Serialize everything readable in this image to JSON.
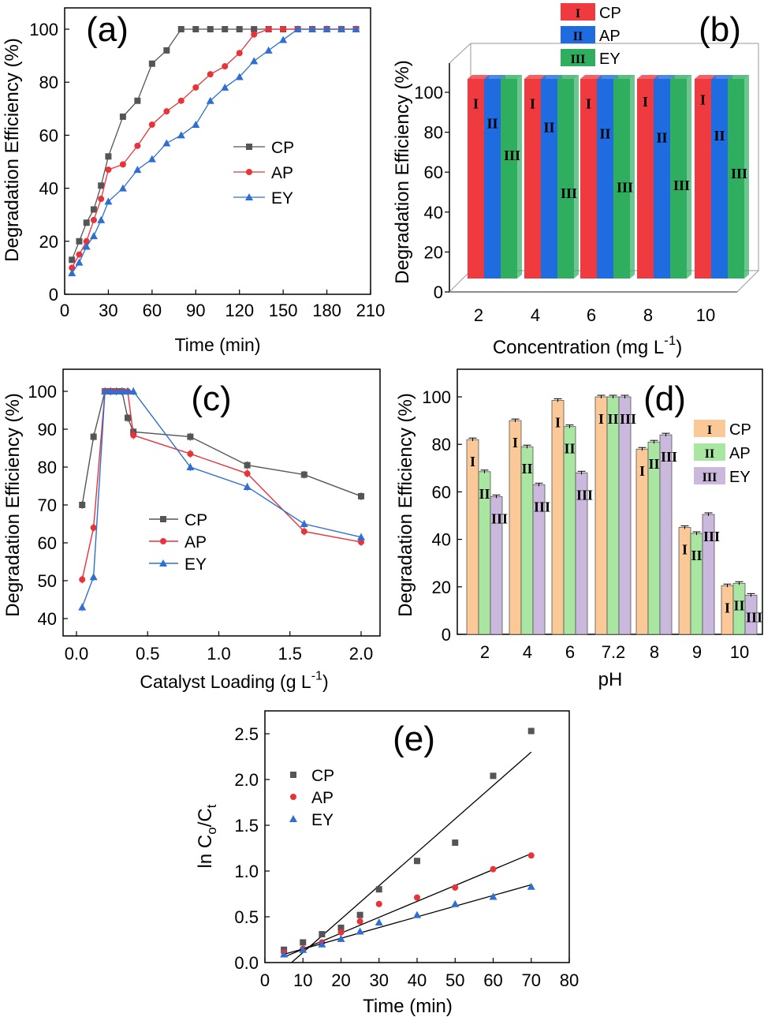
{
  "chart_data": [
    {
      "id": "a",
      "type": "line",
      "panel_label": "(a)",
      "xlabel": "Time (min)",
      "ylabel": "Degradation Efficiency (%)",
      "xlim": [
        0,
        210
      ],
      "ylim": [
        0,
        100
      ],
      "xticks": [
        "0",
        "30",
        "60",
        "90",
        "120",
        "150",
        "180",
        "210"
      ],
      "yticks": [
        "0",
        "20",
        "40",
        "60",
        "80",
        "100"
      ],
      "legend_position": "center-right",
      "series": [
        {
          "name": "CP",
          "color": "#555555",
          "marker": "square",
          "x": [
            5,
            10,
            15,
            20,
            25,
            30,
            40,
            50,
            60,
            70,
            80,
            90,
            100,
            110,
            120,
            130,
            140,
            150,
            160,
            170,
            180,
            190,
            200
          ],
          "y": [
            13,
            20,
            27,
            32,
            41,
            52,
            67,
            73,
            87,
            92,
            100,
            100,
            100,
            100,
            100,
            100,
            100,
            100,
            100,
            100,
            100,
            100,
            100
          ]
        },
        {
          "name": "AP",
          "color": "#e8333b",
          "marker": "circle",
          "x": [
            5,
            10,
            15,
            20,
            25,
            30,
            40,
            50,
            60,
            70,
            80,
            90,
            100,
            110,
            120,
            130,
            140,
            150,
            160,
            170,
            180,
            190,
            200
          ],
          "y": [
            10,
            15,
            20,
            28,
            36,
            47,
            49,
            56,
            64,
            69,
            73,
            78,
            83,
            86,
            91,
            98,
            100,
            100,
            100,
            100,
            100,
            100,
            100
          ]
        },
        {
          "name": "EY",
          "color": "#2f6fd1",
          "marker": "triangle",
          "x": [
            5,
            10,
            15,
            20,
            25,
            30,
            40,
            50,
            60,
            70,
            80,
            90,
            100,
            110,
            120,
            130,
            140,
            150,
            160,
            170,
            180,
            190,
            200
          ],
          "y": [
            8,
            12,
            18,
            22,
            28,
            35,
            40,
            47,
            51,
            57,
            60,
            64,
            73,
            78,
            82,
            88,
            92,
            96,
            100,
            100,
            100,
            100,
            100
          ]
        }
      ]
    },
    {
      "id": "b",
      "type": "bar",
      "panel_label": "(b)",
      "xlabel": "Concentration (mg L",
      "xlabel_sup": "-1",
      "xlabel_end": ")",
      "ylabel": "Degradation Efficiency (%)",
      "ylim": [
        0,
        100
      ],
      "yticks": [
        "0",
        "20",
        "40",
        "60",
        "80",
        "100"
      ],
      "categories": [
        "2",
        "4",
        "6",
        "8",
        "10"
      ],
      "legend_position": "top",
      "series": [
        {
          "name": "CP",
          "numeral": "I",
          "color": "#ef3b3f",
          "values": [
            100,
            100,
            100,
            100,
            100
          ],
          "label_pos": [
            88,
            88,
            88,
            89,
            90
          ]
        },
        {
          "name": "AP",
          "numeral": "II",
          "color": "#1f6be0",
          "values": [
            100,
            100,
            100,
            100,
            100
          ],
          "label_pos": [
            78,
            76,
            73,
            71,
            72
          ]
        },
        {
          "name": "EY",
          "numeral": "III",
          "color": "#2fae5f",
          "values": [
            100,
            100,
            100,
            100,
            100
          ],
          "label_pos": [
            62,
            43,
            46,
            47,
            53
          ]
        }
      ]
    },
    {
      "id": "c",
      "type": "line",
      "panel_label": "(c)",
      "xlabel": "Catalyst Loading (g L",
      "xlabel_sup": "-1",
      "xlabel_end": ")",
      "ylabel": "Degradation Efficiency (%)",
      "xlim": [
        0,
        2.1
      ],
      "ylim": [
        37,
        103
      ],
      "xticks": [
        "0.0",
        "0.5",
        "1.0",
        "1.5",
        "2.0"
      ],
      "xtick_values": [
        0,
        0.5,
        1.0,
        1.5,
        2.0
      ],
      "yticks": [
        "40",
        "50",
        "60",
        "70",
        "80",
        "90",
        "100"
      ],
      "ytick_values": [
        40,
        50,
        60,
        70,
        80,
        90,
        100
      ],
      "legend_position": "center-left",
      "series": [
        {
          "name": "CP",
          "color": "#555555",
          "marker": "square",
          "x": [
            0.04,
            0.12,
            0.2,
            0.24,
            0.28,
            0.32,
            0.36,
            0.4,
            0.8,
            1.2,
            1.6,
            2.0
          ],
          "y": [
            70,
            88,
            100,
            100,
            100,
            100,
            93,
            89.3,
            88,
            80.5,
            78,
            72.3
          ]
        },
        {
          "name": "AP",
          "color": "#e8333b",
          "marker": "circle",
          "x": [
            0.04,
            0.12,
            0.2,
            0.24,
            0.28,
            0.32,
            0.36,
            0.4,
            0.8,
            1.2,
            1.6,
            2.0
          ],
          "y": [
            50.3,
            64,
            100,
            100,
            100,
            100,
            100,
            88.4,
            83.5,
            78.3,
            63,
            60.2
          ]
        },
        {
          "name": "EY",
          "color": "#2f6fd1",
          "marker": "triangle",
          "x": [
            0.04,
            0.12,
            0.2,
            0.24,
            0.28,
            0.32,
            0.36,
            0.4,
            0.8,
            1.2,
            1.6,
            2.0
          ],
          "y": [
            43,
            51,
            100,
            100,
            100,
            100,
            100,
            100,
            80,
            74.8,
            65,
            61.5
          ]
        }
      ]
    },
    {
      "id": "d",
      "type": "bar",
      "panel_label": "(d)",
      "xlabel": "pH",
      "ylabel": "Degradation Efficiency (%)",
      "ylim": [
        0,
        107
      ],
      "yticks": [
        "0",
        "20",
        "40",
        "60",
        "80",
        "100"
      ],
      "categories": [
        "2",
        "4",
        "6",
        "7.2",
        "8",
        "9",
        "10"
      ],
      "legend_position": "right",
      "series": [
        {
          "name": "CP",
          "numeral": "I",
          "color": "#fbc997",
          "values": [
            82,
            90,
            98.5,
            100,
            78,
            45,
            20.5
          ]
        },
        {
          "name": "AP",
          "numeral": "II",
          "color": "#a8e6a1",
          "values": [
            68.5,
            79,
            87.5,
            100,
            81,
            42.5,
            21.5
          ]
        },
        {
          "name": "EY",
          "numeral": "III",
          "color": "#cbb8dd",
          "values": [
            58,
            63,
            68,
            100,
            84,
            50.5,
            16.5
          ]
        }
      ]
    },
    {
      "id": "e",
      "type": "scatter",
      "panel_label": "(e)",
      "xlabel": "Time (min)",
      "ylabel_parts": [
        "ln C",
        "o",
        "/C",
        "t"
      ],
      "xlim": [
        0,
        80
      ],
      "ylim": [
        0,
        2.75
      ],
      "xticks": [
        "0",
        "10",
        "20",
        "30",
        "40",
        "50",
        "60",
        "70",
        "80"
      ],
      "yticks": [
        "0.0",
        "0.5",
        "1.0",
        "1.5",
        "2.0",
        "2.5"
      ],
      "ytick_values": [
        0,
        0.5,
        1.0,
        1.5,
        2.0,
        2.5
      ],
      "legend_position": "top-left",
      "series": [
        {
          "name": "CP",
          "color": "#555555",
          "marker": "square",
          "x": [
            5,
            10,
            15,
            20,
            25,
            30,
            40,
            50,
            60,
            70
          ],
          "y": [
            0.14,
            0.22,
            0.31,
            0.38,
            0.52,
            0.8,
            1.11,
            1.31,
            2.04,
            2.53
          ],
          "fit": [
            [
              7,
              0
            ],
            [
              70,
              2.3
            ]
          ]
        },
        {
          "name": "AP",
          "color": "#e8333b",
          "marker": "circle",
          "x": [
            5,
            10,
            15,
            20,
            25,
            30,
            40,
            50,
            60,
            70
          ],
          "y": [
            0.11,
            0.15,
            0.22,
            0.33,
            0.45,
            0.64,
            0.71,
            0.82,
            1.02,
            1.17
          ],
          "fit": [
            [
              5,
              0.06
            ],
            [
              70,
              1.19
            ]
          ]
        },
        {
          "name": "EY",
          "color": "#2f6fd1",
          "marker": "triangle",
          "x": [
            5,
            10,
            15,
            20,
            25,
            30,
            40,
            50,
            60,
            70
          ],
          "y": [
            0.09,
            0.14,
            0.2,
            0.26,
            0.34,
            0.44,
            0.52,
            0.64,
            0.72,
            0.83
          ],
          "fit": [
            [
              5,
              0.09
            ],
            [
              70,
              0.85
            ]
          ]
        }
      ]
    }
  ]
}
